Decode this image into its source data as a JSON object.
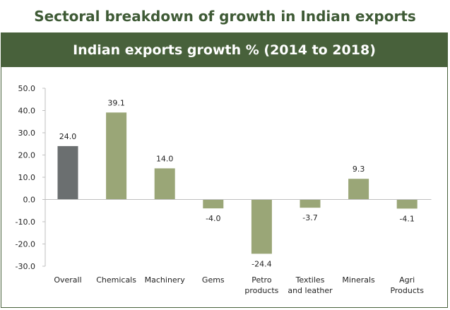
{
  "page_title": "Sectoral breakdown of growth in Indian exports",
  "chart_data": {
    "type": "bar",
    "title": "Indian exports growth % (2014 to 2018)",
    "xlabel": "",
    "ylabel": "",
    "categories": [
      [
        "Overall"
      ],
      [
        "Chemicals"
      ],
      [
        "Machinery"
      ],
      [
        "Gems"
      ],
      [
        "Petro",
        "products"
      ],
      [
        "Textiles",
        "and leather"
      ],
      [
        "Minerals"
      ],
      [
        "Agri",
        "Products"
      ]
    ],
    "values": [
      24.0,
      39.1,
      14.0,
      -4.0,
      -24.4,
      -3.7,
      9.3,
      -4.1
    ],
    "value_labels": [
      "24.0",
      "39.1",
      "14.0",
      "-4.0",
      "-24.4",
      "-3.7",
      "9.3",
      "-4.1"
    ],
    "ylim": [
      -30,
      50
    ],
    "yticks": [
      "50.0",
      "40.0",
      "30.0",
      "20.0",
      "10.0",
      "0.0",
      "-10.0",
      "-20.0",
      "-30.0"
    ],
    "ytick_values": [
      50,
      40,
      30,
      20,
      10,
      0,
      -10,
      -20,
      -30
    ],
    "grid": false,
    "legend": "none",
    "colors": [
      "#6b6f70",
      "#9aa677",
      "#9aa677",
      "#9aa677",
      "#9aa677",
      "#9aa677",
      "#9aa677",
      "#9aa677"
    ],
    "axis_color": "#bfbfbf"
  }
}
